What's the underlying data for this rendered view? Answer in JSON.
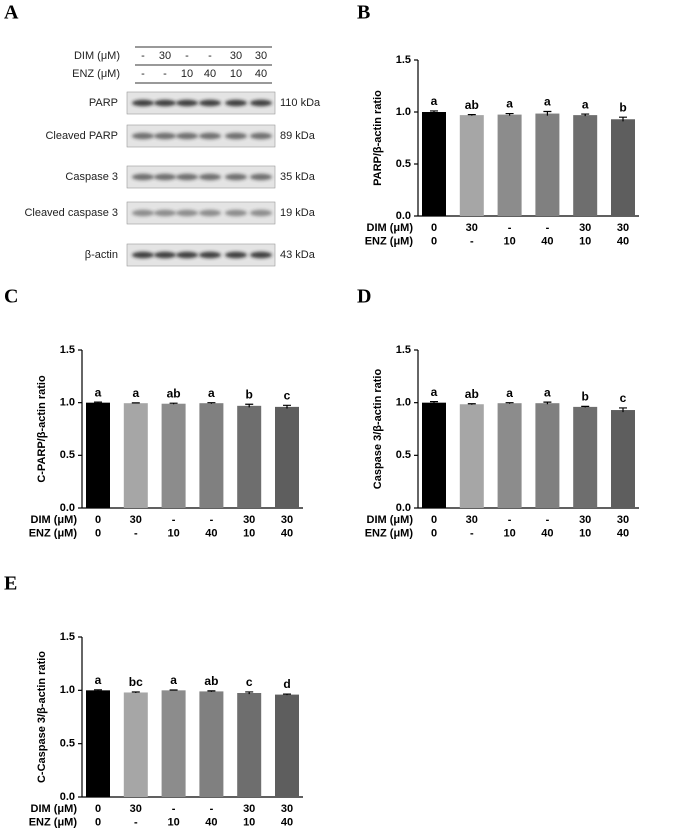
{
  "blot": {
    "panel": "A",
    "condition_rows": [
      {
        "name": "DIM (μM)",
        "labels": [
          "-",
          "30",
          "-",
          "-",
          "30",
          "30"
        ]
      },
      {
        "name": "ENZ (μM)",
        "labels": [
          "-",
          "-",
          "10",
          "40",
          "10",
          "40"
        ]
      }
    ],
    "bands": [
      {
        "name": "PARP",
        "size": "110 kDa"
      },
      {
        "name": "Cleaved PARP",
        "size": "89 kDa"
      },
      {
        "name": "Caspase 3",
        "size": "35 kDa"
      },
      {
        "name": "Cleaved caspase 3",
        "size": "19 kDa"
      },
      {
        "name": "β-actin",
        "size": "43 kDa"
      }
    ]
  },
  "chart_data": [
    {
      "type": "bar",
      "panel": "B",
      "y_label": "PARP/β-actin ratio",
      "category_rows": [
        {
          "name": "DIM (μM)",
          "labels": [
            "0",
            "30",
            "-",
            "-",
            "30",
            "30"
          ]
        },
        {
          "name": "ENZ (μM)",
          "labels": [
            "0",
            "-",
            "10",
            "40",
            "10",
            "40"
          ]
        }
      ],
      "values": [
        1.0,
        0.97,
        0.975,
        0.985,
        0.97,
        0.93
      ],
      "errors": [
        0.01,
        0.005,
        0.01,
        0.02,
        0.01,
        0.02
      ],
      "annotations": [
        "a",
        "ab",
        "a",
        "a",
        "a",
        "b"
      ],
      "colors": [
        "#000000",
        "#a6a6a6",
        "#8c8c8c",
        "#808080",
        "#6e6e6e",
        "#5e5e5e"
      ],
      "ylim": [
        0,
        1.5
      ],
      "yticks": [
        {
          "value": 0,
          "label": "0.0"
        },
        {
          "value": 0.5,
          "label": "0.5"
        },
        {
          "value": 1,
          "label": "1.0"
        },
        {
          "value": 1.5,
          "label": "1.5"
        }
      ]
    },
    {
      "type": "bar",
      "panel": "C",
      "y_label": "C-PARP/β-actin ratio",
      "category_rows": [
        {
          "name": "DIM (μM)",
          "labels": [
            "0",
            "30",
            "-",
            "-",
            "30",
            "30"
          ]
        },
        {
          "name": "ENZ (μM)",
          "labels": [
            "0",
            "-",
            "10",
            "40",
            "10",
            "40"
          ]
        }
      ],
      "values": [
        1.0,
        0.995,
        0.99,
        0.995,
        0.97,
        0.96
      ],
      "errors": [
        0.005,
        0.003,
        0.005,
        0.005,
        0.015,
        0.015
      ],
      "annotations": [
        "a",
        "a",
        "ab",
        "a",
        "b",
        "c"
      ],
      "colors": [
        "#000000",
        "#a6a6a6",
        "#8c8c8c",
        "#808080",
        "#6e6e6e",
        "#5e5e5e"
      ],
      "ylim": [
        0,
        1.5
      ],
      "yticks": [
        {
          "value": 0,
          "label": "0.0"
        },
        {
          "value": 0.5,
          "label": "0.5"
        },
        {
          "value": 1,
          "label": "1.0"
        },
        {
          "value": 1.5,
          "label": "1.5"
        }
      ]
    },
    {
      "type": "bar",
      "panel": "D",
      "y_label": "Caspase 3/β-actin ratio",
      "category_rows": [
        {
          "name": "DIM (μM)",
          "labels": [
            "0",
            "30",
            "-",
            "-",
            "30",
            "30"
          ]
        },
        {
          "name": "ENZ (μM)",
          "labels": [
            "0",
            "-",
            "10",
            "40",
            "10",
            "40"
          ]
        }
      ],
      "values": [
        1.0,
        0.985,
        0.995,
        0.995,
        0.96,
        0.93
      ],
      "errors": [
        0.01,
        0.005,
        0.005,
        0.01,
        0.005,
        0.02
      ],
      "annotations": [
        "a",
        "ab",
        "a",
        "a",
        "b",
        "c"
      ],
      "colors": [
        "#000000",
        "#a6a6a6",
        "#8c8c8c",
        "#808080",
        "#6e6e6e",
        "#5e5e5e"
      ],
      "ylim": [
        0,
        1.5
      ],
      "yticks": [
        {
          "value": 0,
          "label": "0.0"
        },
        {
          "value": 0.5,
          "label": "0.5"
        },
        {
          "value": 1,
          "label": "1.0"
        },
        {
          "value": 1.5,
          "label": "1.5"
        }
      ]
    },
    {
      "type": "bar",
      "panel": "E",
      "y_label": "C-Caspase 3/β-actin ratio",
      "category_rows": [
        {
          "name": "DIM (μM)",
          "labels": [
            "0",
            "30",
            "-",
            "-",
            "30",
            "30"
          ]
        },
        {
          "name": "ENZ (μM)",
          "labels": [
            "0",
            "-",
            "10",
            "40",
            "10",
            "40"
          ]
        }
      ],
      "values": [
        1.0,
        0.98,
        1.0,
        0.99,
        0.975,
        0.96
      ],
      "errors": [
        0.005,
        0.005,
        0.003,
        0.005,
        0.01,
        0.005
      ],
      "annotations": [
        "a",
        "bc",
        "a",
        "ab",
        "c",
        "d"
      ],
      "colors": [
        "#000000",
        "#a6a6a6",
        "#8c8c8c",
        "#808080",
        "#6e6e6e",
        "#5e5e5e"
      ],
      "ylim": [
        0,
        1.5
      ],
      "yticks": [
        {
          "value": 0,
          "label": "0.0"
        },
        {
          "value": 0.5,
          "label": "0.5"
        },
        {
          "value": 1,
          "label": "1.0"
        },
        {
          "value": 1.5,
          "label": "1.5"
        }
      ]
    }
  ]
}
